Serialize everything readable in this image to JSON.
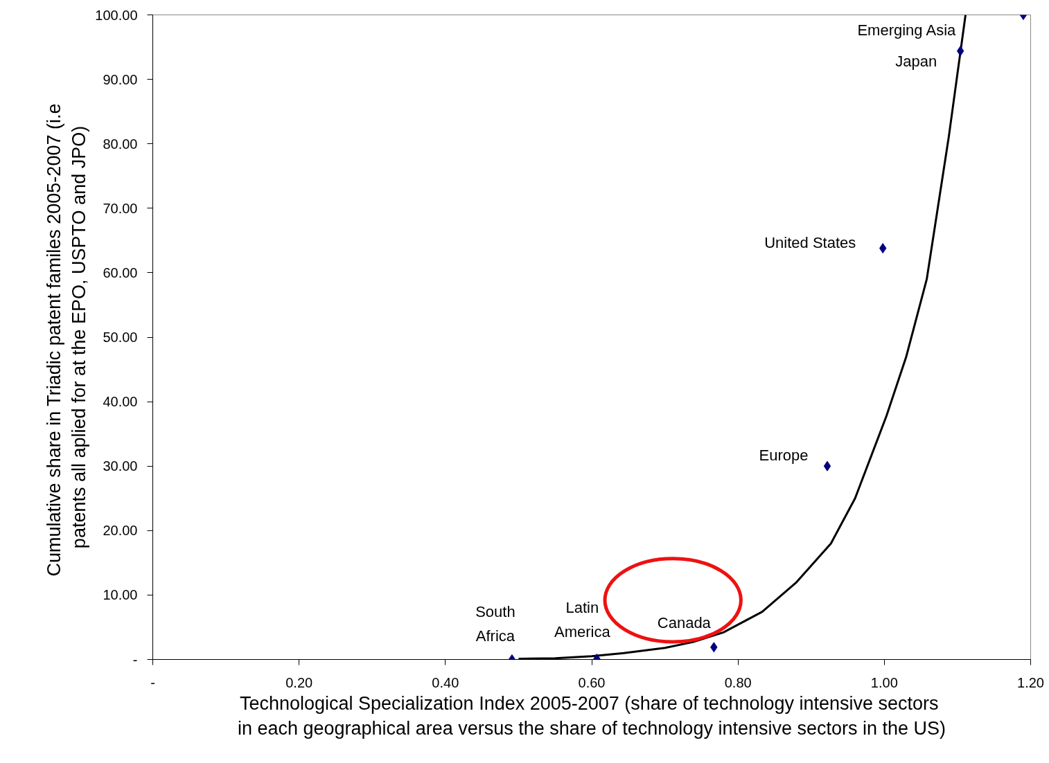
{
  "chart_data": {
    "type": "scatter",
    "xlabel": "Technological Specialization Index 2005-2007  (share of technology intensive sectors\nin each geographical area versus the share of technology intensive sectors in the US)",
    "ylabel": "Cumulative share in Triadic patent familes 2005-2007  (i.e\npatents all aplied for at the EPO, USPTO and JPO)",
    "series": [
      {
        "color": "#000080",
        "x": [
          0.491,
          0.607,
          0.767,
          0.922,
          0.998,
          1.104,
          1.19
        ],
        "values": [
          0,
          0.1,
          1.9,
          30,
          63.8,
          94.4,
          100
        ]
      },
      {
        "type": "line",
        "marker": "none",
        "color": "#000000",
        "x": [
          0.5,
          0.55,
          0.6,
          0.644,
          0.7,
          0.738,
          0.78,
          0.833,
          0.88,
          0.927,
          0.96,
          1.003,
          1.03,
          1.058,
          1.088,
          1.111
        ],
        "values": [
          0.1,
          0.2,
          0.5,
          1.0,
          1.8,
          2.7,
          4.2,
          7.4,
          12,
          18,
          25,
          37.8,
          47,
          59,
          81,
          100
        ]
      }
    ],
    "annotations": [
      {
        "text": "South\nAfrica",
        "x": 0.491,
        "y": 0
      },
      {
        "text": "Latin\nAmerica",
        "x": 0.607,
        "y": 0.1
      },
      {
        "text": "Canada",
        "x": 0.767,
        "y": 1.9
      },
      {
        "text": "Europe",
        "x": 0.922,
        "y": 30
      },
      {
        "text": "United States",
        "x": 0.998,
        "y": 63.8
      },
      {
        "text": "Japan",
        "x": 1.104,
        "y": 94.4
      },
      "Emerging Asia"
    ],
    "xlim": [
      0,
      1.2
    ],
    "ylim": [
      0,
      100
    ],
    "xticks": [
      {
        "value": 0,
        "label": "-"
      },
      {
        "value": 0.2,
        "label": "0.20"
      },
      {
        "value": 0.4,
        "label": "0.40"
      },
      {
        "value": 0.6,
        "label": "0.60"
      },
      {
        "value": 0.8,
        "label": "0.80"
      },
      {
        "value": 1.0,
        "label": "1.00"
      },
      {
        "value": 1.2,
        "label": "1.20"
      }
    ],
    "yticks": [
      {
        "value": 0,
        "label": "-"
      },
      {
        "value": 10,
        "label": "10.00"
      },
      {
        "value": 20,
        "label": "20.00"
      },
      {
        "value": 30,
        "label": "30.00"
      },
      {
        "value": 40,
        "label": "40.00"
      },
      {
        "value": 50,
        "label": "50.00"
      },
      {
        "value": 60,
        "label": "60.00"
      },
      {
        "value": 70,
        "label": "70.00"
      },
      {
        "value": 80,
        "label": "80.00"
      },
      {
        "value": 90,
        "label": "90.00"
      },
      {
        "value": 100,
        "label": "100.00"
      }
    ],
    "grid": false,
    "marker": "diamond",
    "line_style": "solid"
  }
}
